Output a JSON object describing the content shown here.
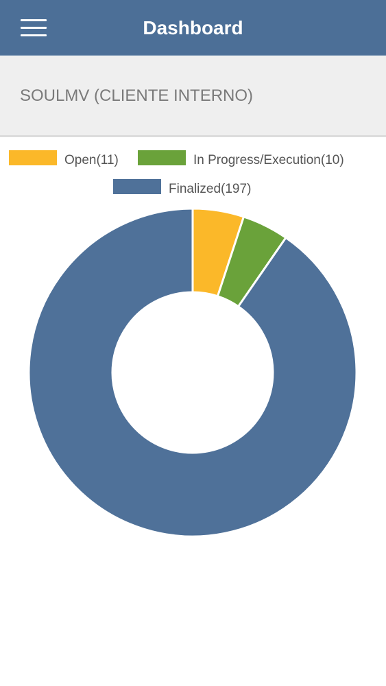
{
  "header": {
    "title": "Dashboard"
  },
  "subtitle": "SOULMV (CLIENTE INTERNO)",
  "chart_data": {
    "type": "donut",
    "categories": [
      "Open(11)",
      "In Progress/Execution(10)",
      "Finalized(197)"
    ],
    "values": [
      11,
      10,
      197
    ],
    "colors": [
      "#fbb829",
      "#6aa23a",
      "#4f7199"
    ]
  }
}
